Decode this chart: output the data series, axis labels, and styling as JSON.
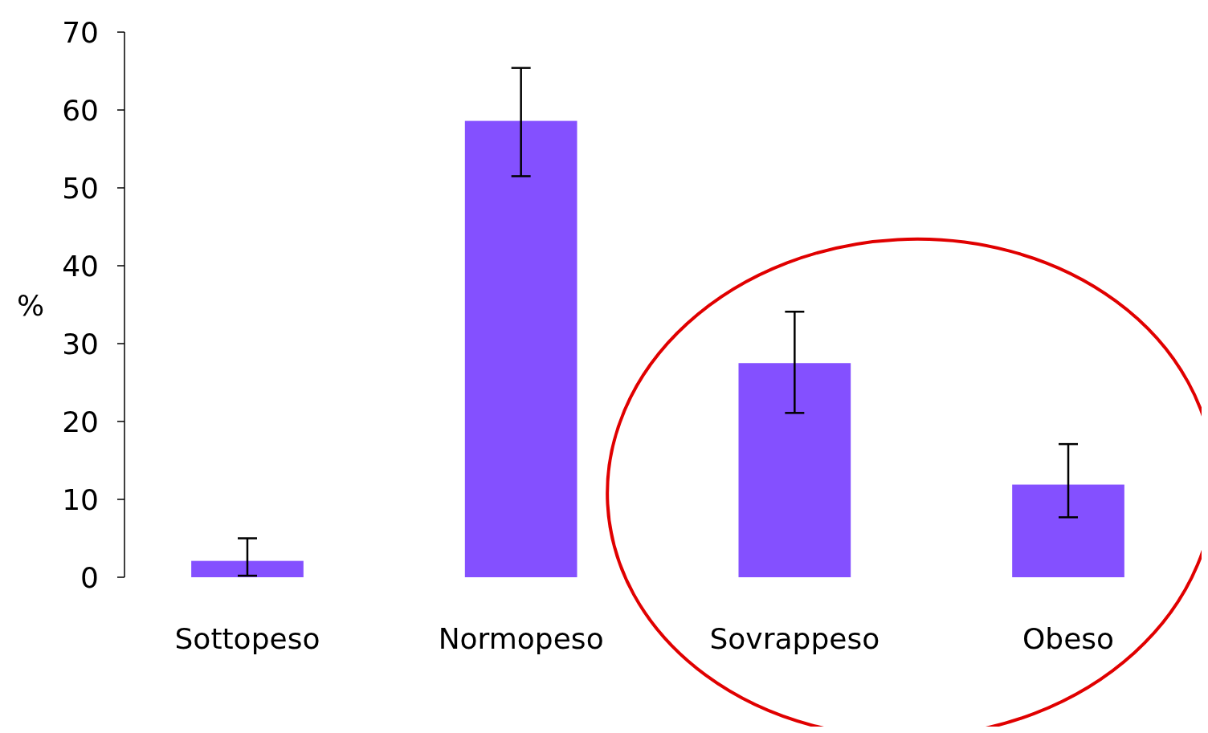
{
  "chart_data": {
    "type": "bar",
    "ylabel": "%",
    "categories": [
      "Sottopeso",
      "Normopeso",
      "Sovrappeso",
      "Obeso"
    ],
    "values": [
      2.1,
      58.6,
      27.5,
      11.9
    ],
    "errors": [
      [
        0.2,
        5
      ],
      [
        51.5,
        65.4
      ],
      [
        21.1,
        34.1
      ],
      [
        7.7,
        17.1
      ]
    ],
    "color": "#8450ff",
    "ylim": [
      0,
      70
    ],
    "yticks": [
      0,
      10,
      20,
      30,
      40,
      50,
      60,
      70
    ],
    "grid": false
  }
}
